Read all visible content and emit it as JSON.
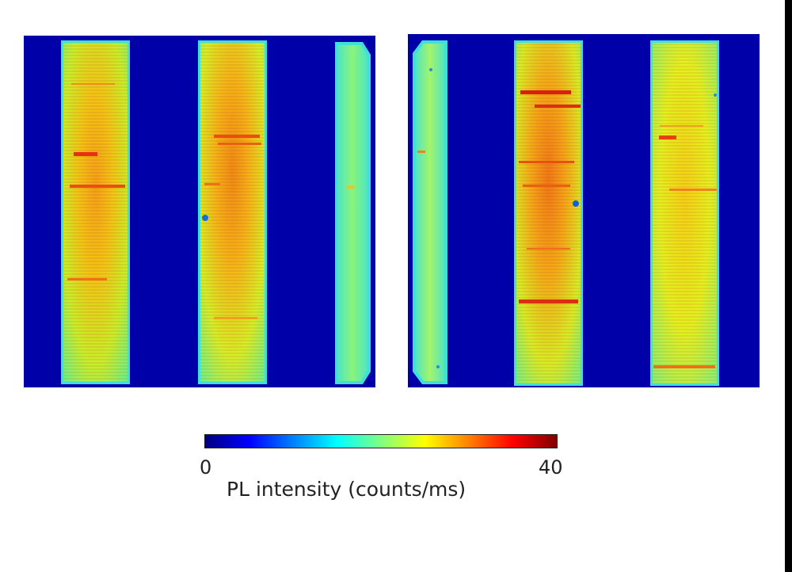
{
  "figure": {
    "colormap": "jet",
    "colors": {
      "background": "#0000a8",
      "colormap_stops": [
        "#000080",
        "#0000ff",
        "#0080ff",
        "#00ffff",
        "#80ff80",
        "#ffff00",
        "#ff8000",
        "#ff0000",
        "#800000"
      ]
    },
    "colorbar": {
      "min_label": "0",
      "max_label": "40",
      "title": "PL intensity (counts/ms)"
    }
  }
}
